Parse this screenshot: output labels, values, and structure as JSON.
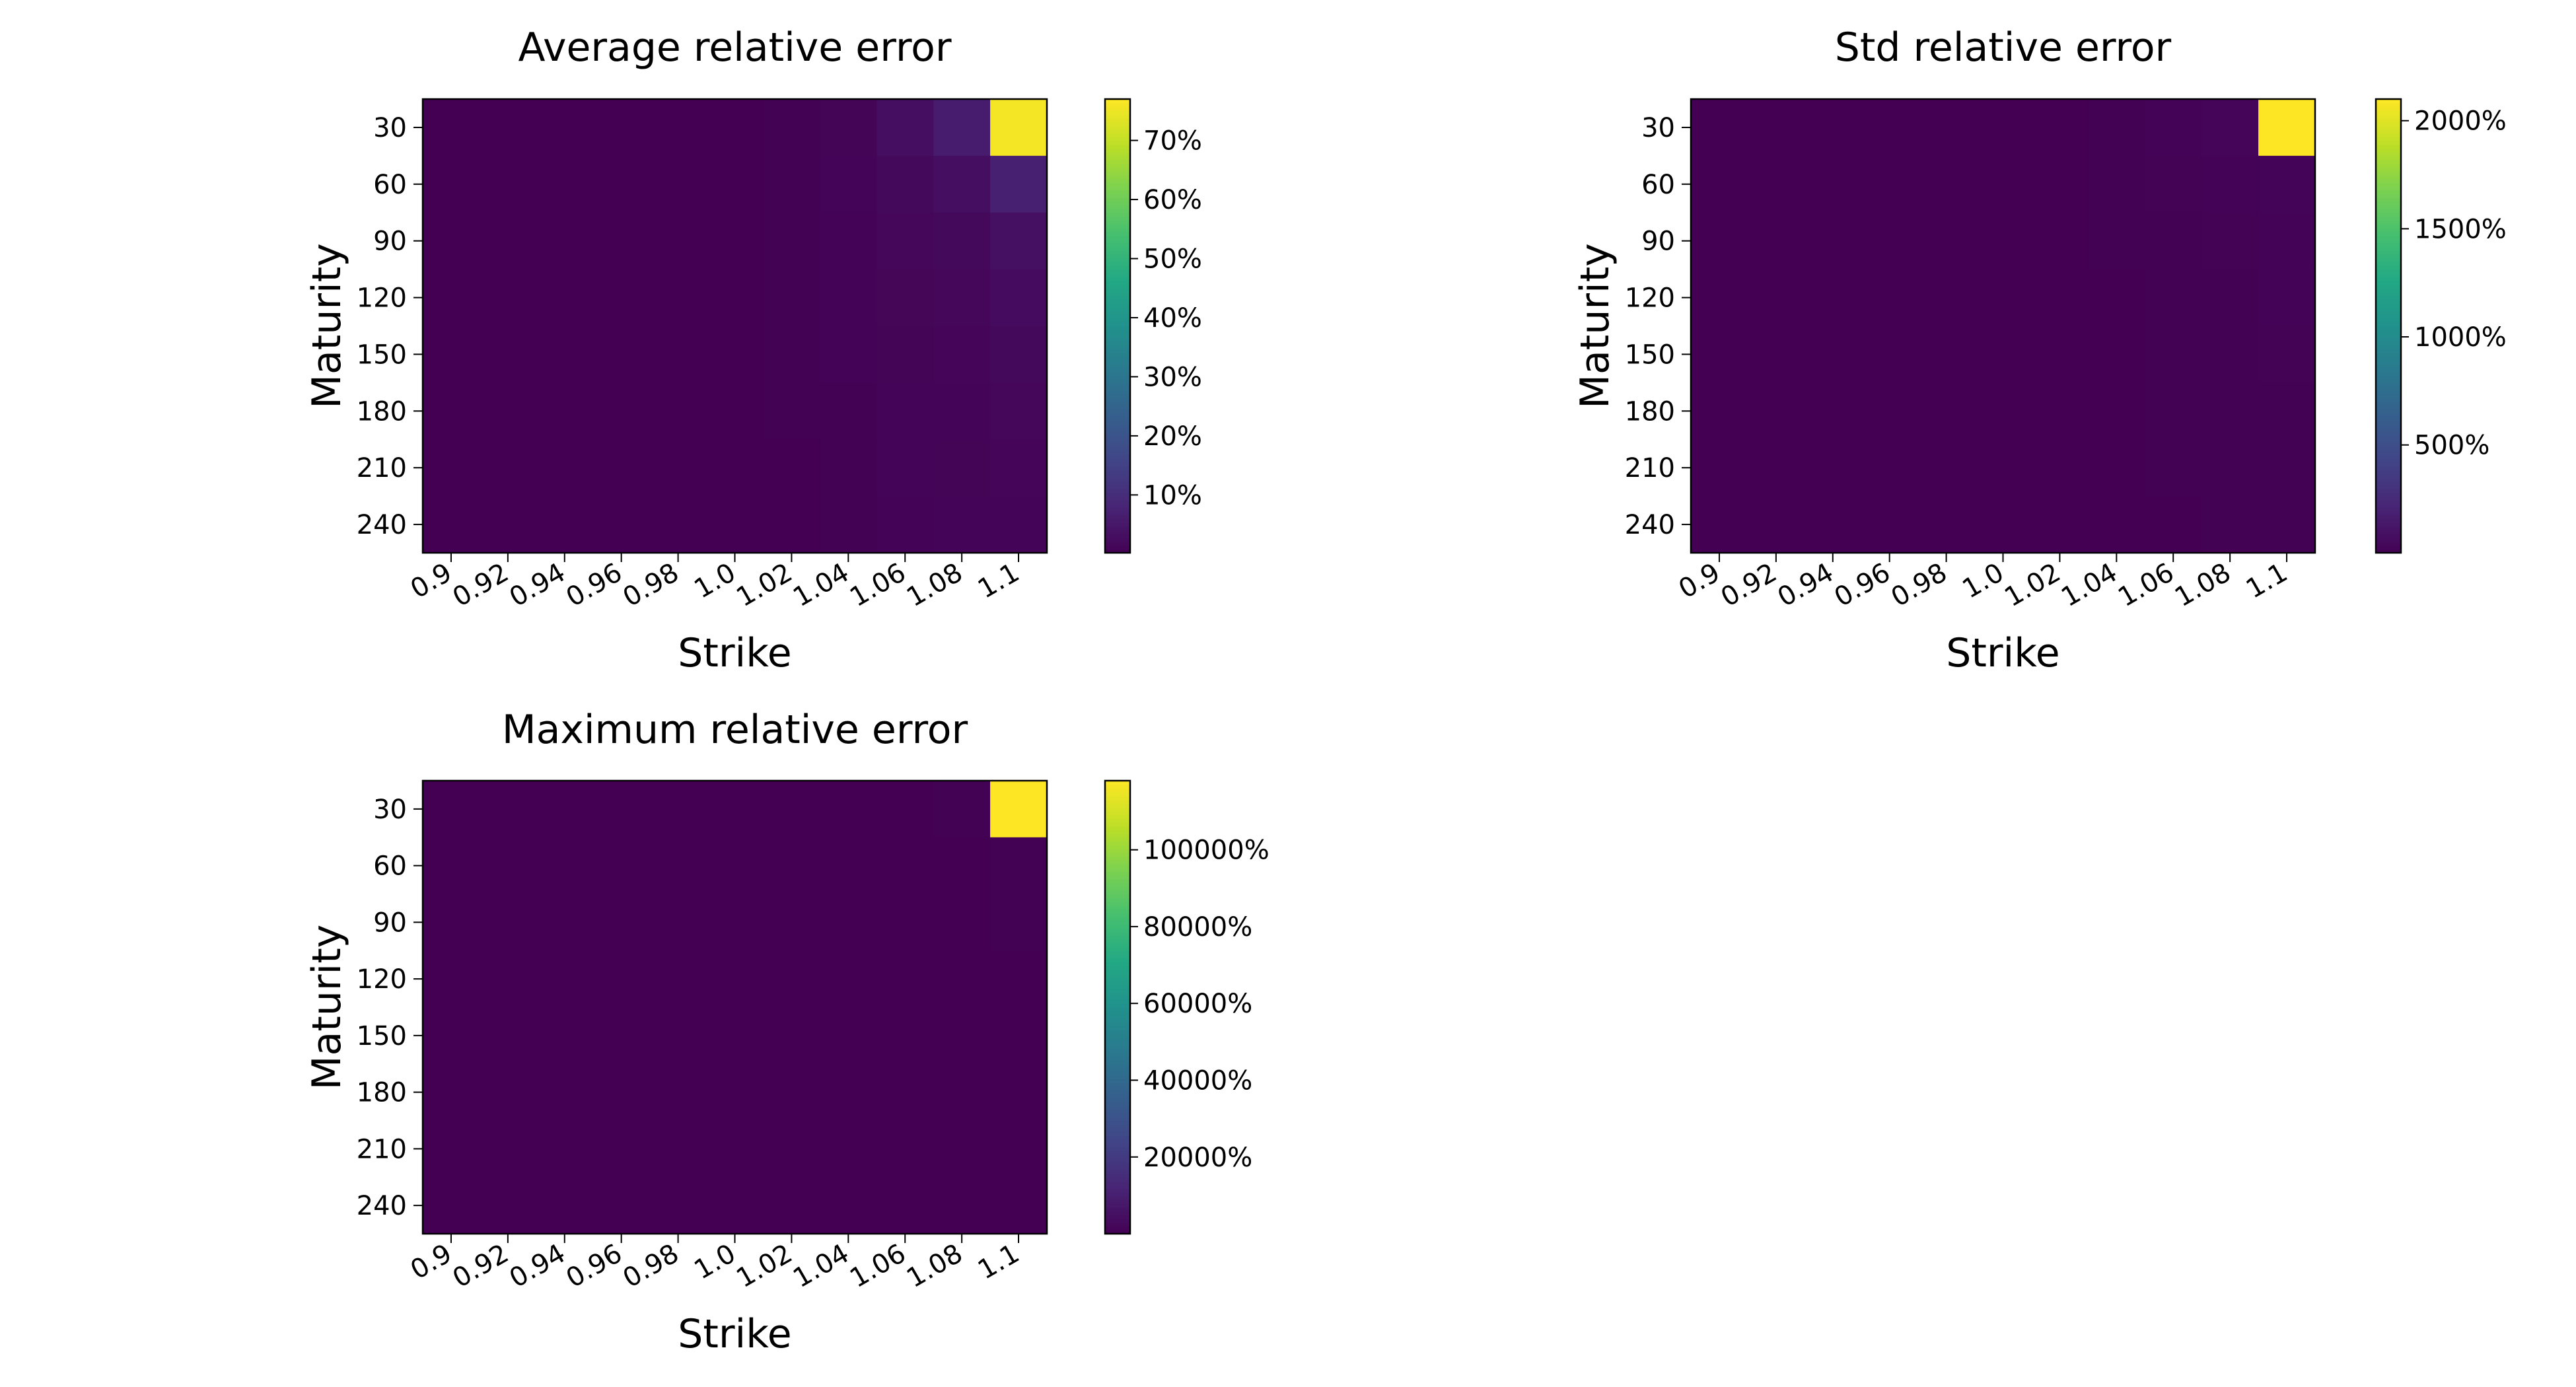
{
  "chart_data": [
    {
      "type": "heatmap",
      "title": "Average relative error",
      "xlabel": "Strike",
      "ylabel": "Maturity",
      "x_categories": [
        "0.9",
        "0.92",
        "0.94",
        "0.96",
        "0.98",
        "1.0",
        "1.02",
        "1.04",
        "1.06",
        "1.08",
        "1.1"
      ],
      "y_categories": [
        "30",
        "60",
        "90",
        "120",
        "150",
        "180",
        "210",
        "240"
      ],
      "values": [
        [
          0.2,
          0.2,
          0.2,
          0.2,
          0.2,
          0.3,
          0.4,
          1.0,
          3.0,
          6.0,
          76.0
        ],
        [
          0.2,
          0.2,
          0.2,
          0.2,
          0.2,
          0.3,
          0.4,
          0.8,
          2.0,
          3.0,
          7.0
        ],
        [
          0.2,
          0.2,
          0.2,
          0.2,
          0.2,
          0.3,
          0.4,
          0.7,
          1.5,
          2.0,
          3.5
        ],
        [
          0.2,
          0.2,
          0.2,
          0.2,
          0.2,
          0.3,
          0.4,
          0.6,
          1.2,
          1.6,
          2.5
        ],
        [
          0.2,
          0.2,
          0.2,
          0.2,
          0.2,
          0.3,
          0.4,
          0.6,
          1.0,
          1.3,
          2.0
        ],
        [
          0.2,
          0.2,
          0.2,
          0.2,
          0.2,
          0.3,
          0.4,
          0.5,
          0.9,
          1.1,
          1.6
        ],
        [
          0.2,
          0.2,
          0.2,
          0.2,
          0.2,
          0.3,
          0.3,
          0.5,
          0.8,
          1.0,
          1.3
        ],
        [
          0.2,
          0.2,
          0.2,
          0.2,
          0.2,
          0.3,
          0.3,
          0.5,
          0.7,
          0.9,
          1.1
        ]
      ],
      "colorbar": {
        "min": 0.2,
        "max": 77,
        "ticks": [
          10,
          20,
          30,
          40,
          50,
          60,
          70
        ],
        "tick_labels": [
          "10%",
          "20%",
          "30%",
          "40%",
          "50%",
          "60%",
          "70%"
        ]
      }
    },
    {
      "type": "heatmap",
      "title": "Std relative error",
      "xlabel": "Strike",
      "ylabel": "Maturity",
      "x_categories": [
        "0.9",
        "0.92",
        "0.94",
        "0.96",
        "0.98",
        "1.0",
        "1.02",
        "1.04",
        "1.06",
        "1.08",
        "1.1"
      ],
      "y_categories": [
        "30",
        "60",
        "90",
        "120",
        "150",
        "180",
        "210",
        "240"
      ],
      "values": [
        [
          1,
          1,
          1,
          1,
          1,
          2,
          3,
          6,
          15,
          30,
          2100
        ],
        [
          1,
          1,
          1,
          1,
          1,
          2,
          3,
          5,
          10,
          15,
          25
        ],
        [
          1,
          1,
          1,
          1,
          1,
          2,
          2,
          4,
          8,
          10,
          15
        ],
        [
          1,
          1,
          1,
          1,
          1,
          2,
          2,
          3,
          6,
          8,
          12
        ],
        [
          1,
          1,
          1,
          1,
          1,
          1,
          2,
          3,
          5,
          7,
          10
        ],
        [
          1,
          1,
          1,
          1,
          1,
          1,
          2,
          3,
          4,
          6,
          8
        ],
        [
          1,
          1,
          1,
          1,
          1,
          1,
          2,
          2,
          4,
          5,
          7
        ],
        [
          1,
          1,
          1,
          1,
          1,
          1,
          2,
          2,
          3,
          4,
          6
        ]
      ],
      "colorbar": {
        "min": 1,
        "max": 2100,
        "ticks": [
          500,
          1000,
          1500,
          2000
        ],
        "tick_labels": [
          "500%",
          "1000%",
          "1500%",
          "2000%"
        ]
      }
    },
    {
      "type": "heatmap",
      "title": "Maximum relative error",
      "xlabel": "Strike",
      "ylabel": "Maturity",
      "x_categories": [
        "0.9",
        "0.92",
        "0.94",
        "0.96",
        "0.98",
        "1.0",
        "1.02",
        "1.04",
        "1.06",
        "1.08",
        "1.1"
      ],
      "y_categories": [
        "30",
        "60",
        "90",
        "120",
        "150",
        "180",
        "210",
        "240"
      ],
      "values": [
        [
          5,
          5,
          5,
          5,
          5,
          8,
          15,
          40,
          120,
          300,
          118000
        ],
        [
          5,
          5,
          5,
          5,
          5,
          8,
          12,
          30,
          80,
          150,
          300
        ],
        [
          5,
          5,
          5,
          5,
          5,
          7,
          10,
          25,
          60,
          100,
          200
        ],
        [
          5,
          5,
          5,
          5,
          5,
          7,
          10,
          20,
          50,
          80,
          150
        ],
        [
          5,
          5,
          5,
          5,
          5,
          6,
          9,
          18,
          40,
          60,
          120
        ],
        [
          5,
          5,
          5,
          5,
          5,
          6,
          8,
          15,
          35,
          50,
          100
        ],
        [
          5,
          5,
          5,
          5,
          5,
          6,
          8,
          14,
          30,
          45,
          80
        ],
        [
          5,
          5,
          5,
          5,
          5,
          6,
          7,
          12,
          25,
          40,
          70
        ]
      ],
      "colorbar": {
        "min": 5,
        "max": 118000,
        "ticks": [
          20000,
          40000,
          60000,
          80000,
          100000
        ],
        "tick_labels": [
          "20000%",
          "40000%",
          "60000%",
          "80000%",
          "100000%"
        ]
      }
    }
  ]
}
